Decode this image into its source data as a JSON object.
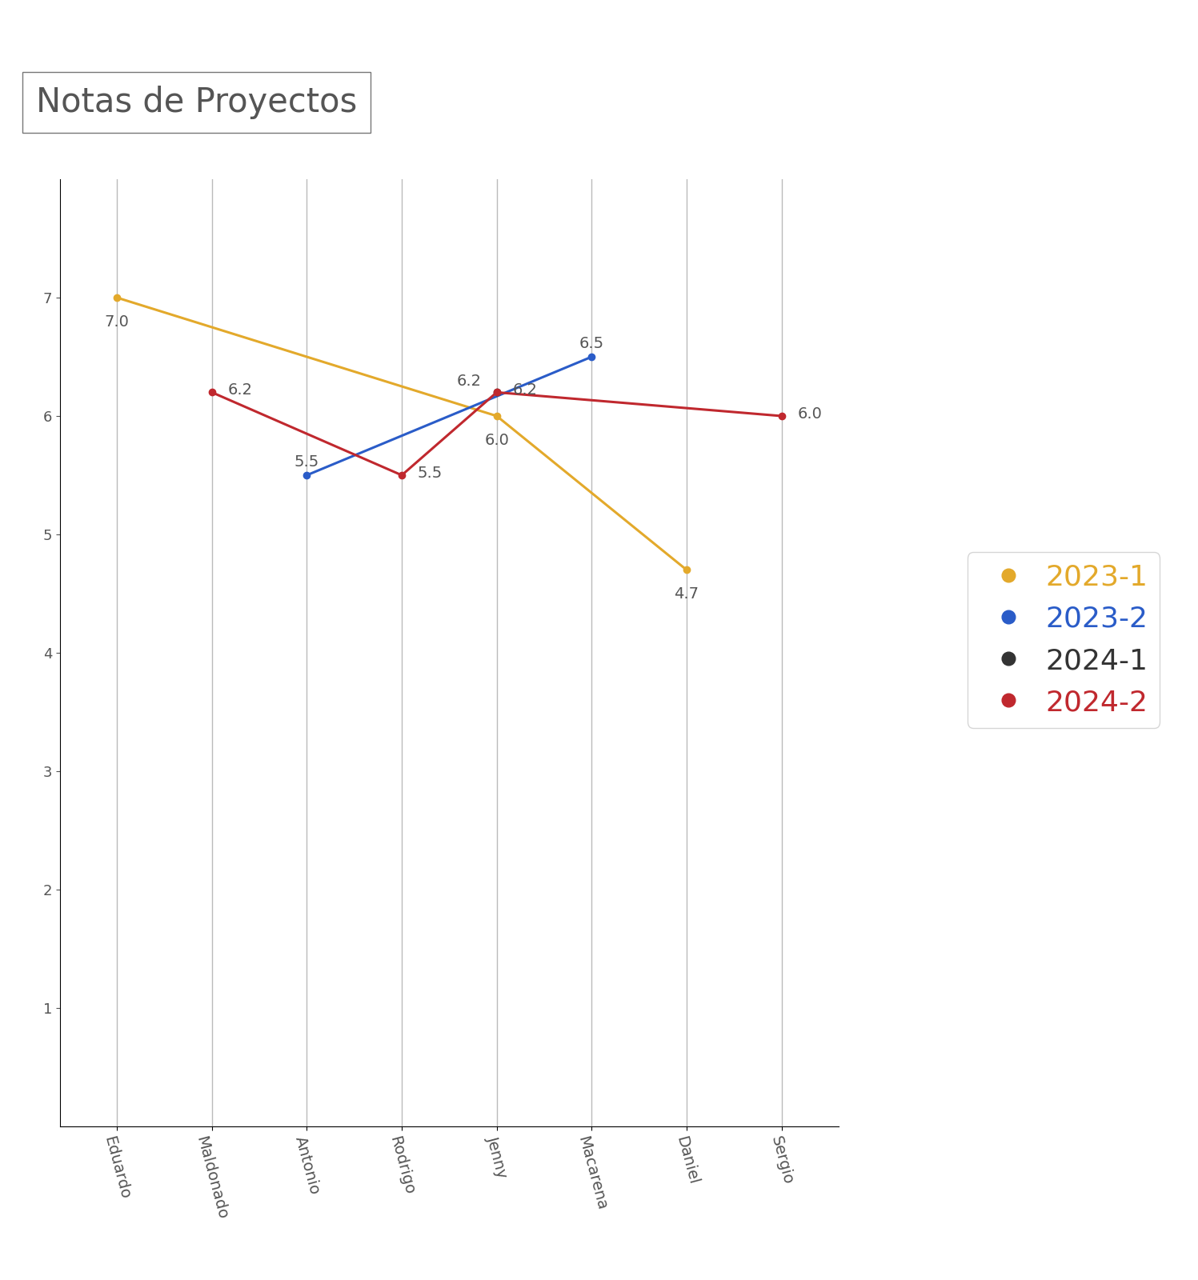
{
  "chart_data": {
    "type": "line",
    "title": "Notas de Proyectos",
    "categories": [
      "Eduardo",
      "Maldonado",
      "Antonio",
      "Rodrigo",
      "Jenny",
      "Macarena",
      "Daniel",
      "Sergio"
    ],
    "series": [
      {
        "name": "2023-1",
        "color": "#e3a92b",
        "values": [
          7.0,
          null,
          null,
          null,
          6.0,
          null,
          4.7,
          null
        ]
      },
      {
        "name": "2023-2",
        "color": "#2a5cc8",
        "values": [
          null,
          null,
          5.5,
          null,
          null,
          6.5,
          null,
          null
        ]
      },
      {
        "name": "2024-1",
        "color": "#333333",
        "values": [
          null,
          null,
          null,
          null,
          6.2,
          null,
          null,
          null
        ]
      },
      {
        "name": "2024-2",
        "color": "#c0282e",
        "values": [
          null,
          6.2,
          null,
          5.5,
          6.2,
          null,
          null,
          6.0
        ]
      }
    ],
    "ylim": [
      0,
      8
    ],
    "yticks": [
      1,
      2,
      3,
      4,
      5,
      6,
      7
    ],
    "grid": true,
    "legend": "center right",
    "data_labels": true,
    "marker": "o"
  }
}
